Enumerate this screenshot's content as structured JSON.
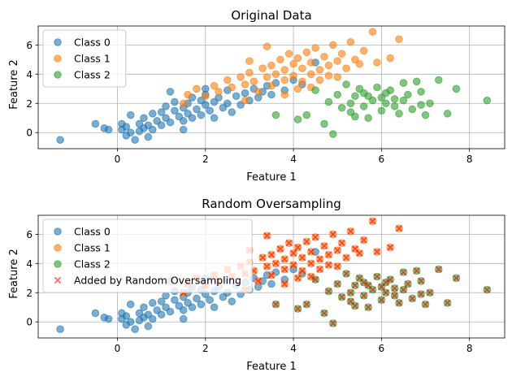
{
  "chart_data": [
    {
      "type": "scatter",
      "title": "Original Data",
      "xlabel": "Feature 1",
      "ylabel": "Feature 2",
      "xlim": [
        -1.8,
        8.8
      ],
      "ylim": [
        -1.1,
        7.3
      ],
      "xticks": [
        0,
        2,
        4,
        6,
        8
      ],
      "yticks": [
        0,
        2,
        4,
        6
      ],
      "grid": true,
      "legend": "top-left",
      "series": [
        {
          "name": "Class 0",
          "color": "#1f77b4",
          "marker": "circle",
          "points": [
            [
              -1.3,
              -0.5
            ],
            [
              -0.5,
              0.6
            ],
            [
              -0.3,
              0.3
            ],
            [
              -0.2,
              0.2
            ],
            [
              0.1,
              0.6
            ],
            [
              0.1,
              0.2
            ],
            [
              0.2,
              0.4
            ],
            [
              0.2,
              -0.2
            ],
            [
              0.3,
              0.0
            ],
            [
              0.4,
              -0.5
            ],
            [
              0.5,
              0.1
            ],
            [
              0.5,
              0.6
            ],
            [
              0.6,
              0.3
            ],
            [
              0.6,
              1.0
            ],
            [
              0.7,
              -0.3
            ],
            [
              0.7,
              0.5
            ],
            [
              0.8,
              1.3
            ],
            [
              0.8,
              0.2
            ],
            [
              0.9,
              0.8
            ],
            [
              1.0,
              1.4
            ],
            [
              1.0,
              0.5
            ],
            [
              1.1,
              1.0
            ],
            [
              1.1,
              1.8
            ],
            [
              1.2,
              0.7
            ],
            [
              1.3,
              1.5
            ],
            [
              1.3,
              2.1
            ],
            [
              1.4,
              1.1
            ],
            [
              1.5,
              1.7
            ],
            [
              1.5,
              0.8
            ],
            [
              1.6,
              1.3
            ],
            [
              1.6,
              2.0
            ],
            [
              1.7,
              2.4
            ],
            [
              1.7,
              1.0
            ],
            [
              1.8,
              1.6
            ],
            [
              1.9,
              2.2
            ],
            [
              1.9,
              1.2
            ],
            [
              2.0,
              1.9
            ],
            [
              2.0,
              2.6
            ],
            [
              2.1,
              1.5
            ],
            [
              2.2,
              2.1
            ],
            [
              2.2,
              1.0
            ],
            [
              2.3,
              2.4
            ],
            [
              2.4,
              1.7
            ],
            [
              2.5,
              2.9
            ],
            [
              2.5,
              2.0
            ],
            [
              2.6,
              1.4
            ],
            [
              2.7,
              2.5
            ],
            [
              2.8,
              1.9
            ],
            [
              2.9,
              2.7
            ],
            [
              3.0,
              2.2
            ],
            [
              3.1,
              3.0
            ],
            [
              3.2,
              2.4
            ],
            [
              3.3,
              2.8
            ],
            [
              3.4,
              3.2
            ],
            [
              3.5,
              2.6
            ],
            [
              3.6,
              3.4
            ],
            [
              3.8,
              2.9
            ],
            [
              4.0,
              3.6
            ],
            [
              4.2,
              3.3
            ],
            [
              4.5,
              4.8
            ],
            [
              1.2,
              2.8
            ],
            [
              0.3,
              1.2
            ],
            [
              1.5,
              0.2
            ],
            [
              2.0,
              3.0
            ]
          ]
        },
        {
          "name": "Class 1",
          "color": "#ff7f0e",
          "marker": "circle",
          "points": [
            [
              1.5,
              2.0
            ],
            [
              1.6,
              2.6
            ],
            [
              1.8,
              3.0
            ],
            [
              2.0,
              2.5
            ],
            [
              2.2,
              3.2
            ],
            [
              2.3,
              2.8
            ],
            [
              2.5,
              3.6
            ],
            [
              2.6,
              3.1
            ],
            [
              2.8,
              3.8
            ],
            [
              2.9,
              3.3
            ],
            [
              3.0,
              4.1
            ],
            [
              3.1,
              3.5
            ],
            [
              3.2,
              2.8
            ],
            [
              3.3,
              4.4
            ],
            [
              3.4,
              3.8
            ],
            [
              3.5,
              4.6
            ],
            [
              3.6,
              4.0
            ],
            [
              3.7,
              5.0
            ],
            [
              3.8,
              4.3
            ],
            [
              3.8,
              3.6
            ],
            [
              3.9,
              5.4
            ],
            [
              4.0,
              4.7
            ],
            [
              4.0,
              3.9
            ],
            [
              4.1,
              5.1
            ],
            [
              4.2,
              4.4
            ],
            [
              4.2,
              3.5
            ],
            [
              4.3,
              5.5
            ],
            [
              4.4,
              4.8
            ],
            [
              4.4,
              4.0
            ],
            [
              4.5,
              5.8
            ],
            [
              4.6,
              4.3
            ],
            [
              4.6,
              3.6
            ],
            [
              4.7,
              5.2
            ],
            [
              4.8,
              4.6
            ],
            [
              4.9,
              6.0
            ],
            [
              5.0,
              4.9
            ],
            [
              5.0,
              3.8
            ],
            [
              5.1,
              5.4
            ],
            [
              5.2,
              4.4
            ],
            [
              5.3,
              6.2
            ],
            [
              5.4,
              5.0
            ],
            [
              5.5,
              4.7
            ],
            [
              5.6,
              5.6
            ],
            [
              5.8,
              6.9
            ],
            [
              5.9,
              4.8
            ],
            [
              6.2,
              5.1
            ],
            [
              6.4,
              6.4
            ],
            [
              3.8,
              2.6
            ],
            [
              4.4,
              3.1
            ],
            [
              2.9,
              2.2
            ],
            [
              3.5,
              3.2
            ],
            [
              4.8,
              3.9
            ],
            [
              3.0,
              4.9
            ],
            [
              4.1,
              3.0
            ],
            [
              3.4,
              5.9
            ]
          ]
        },
        {
          "name": "Class 2",
          "color": "#2ca02c",
          "marker": "circle",
          "points": [
            [
              3.6,
              1.2
            ],
            [
              4.1,
              0.9
            ],
            [
              4.3,
              1.2
            ],
            [
              4.5,
              2.9
            ],
            [
              4.7,
              0.6
            ],
            [
              4.8,
              2.1
            ],
            [
              4.9,
              -0.1
            ],
            [
              5.0,
              2.6
            ],
            [
              5.1,
              1.7
            ],
            [
              5.2,
              3.3
            ],
            [
              5.3,
              1.4
            ],
            [
              5.4,
              2.5
            ],
            [
              5.5,
              3.0
            ],
            [
              5.6,
              1.8
            ],
            [
              5.6,
              2.7
            ],
            [
              5.7,
              1.0
            ],
            [
              5.8,
              2.2
            ],
            [
              5.9,
              3.1
            ],
            [
              6.0,
              1.5
            ],
            [
              6.0,
              2.4
            ],
            [
              6.1,
              2.0
            ],
            [
              6.2,
              2.9
            ],
            [
              6.3,
              2.3
            ],
            [
              6.4,
              1.3
            ],
            [
              6.5,
              3.4
            ],
            [
              6.6,
              2.6
            ],
            [
              6.7,
              1.6
            ],
            [
              6.8,
              3.5
            ],
            [
              6.9,
              2.8
            ],
            [
              7.0,
              1.2
            ],
            [
              7.1,
              2.0
            ],
            [
              7.3,
              3.6
            ],
            [
              7.5,
              1.3
            ],
            [
              7.7,
              3.0
            ],
            [
              8.4,
              2.2
            ],
            [
              5.3,
              2.0
            ],
            [
              5.7,
              2.5
            ],
            [
              6.3,
              1.8
            ],
            [
              6.9,
              1.9
            ],
            [
              5.4,
              1.1
            ],
            [
              6.1,
              2.7
            ],
            [
              6.5,
              2.2
            ]
          ]
        }
      ]
    },
    {
      "type": "scatter",
      "title": "Random Oversampling",
      "xlabel": "Feature 1",
      "ylabel": "Feature 2",
      "xlim": [
        -1.8,
        8.8
      ],
      "ylim": [
        -1.1,
        7.3
      ],
      "xticks": [
        0,
        2,
        4,
        6,
        8
      ],
      "yticks": [
        0,
        2,
        4,
        6
      ],
      "grid": true,
      "legend": "top-left",
      "series": [
        {
          "name": "Class 0",
          "color": "#1f77b4",
          "marker": "circle",
          "source": 0
        },
        {
          "name": "Class 1",
          "color": "#ff7f0e",
          "marker": "circle",
          "source": 1
        },
        {
          "name": "Class 2",
          "color": "#2ca02c",
          "marker": "circle",
          "source": 2
        },
        {
          "name": "Added by Random Oversampling",
          "color": "#ff0000",
          "marker": "x",
          "source": [
            1,
            2
          ]
        }
      ]
    }
  ]
}
